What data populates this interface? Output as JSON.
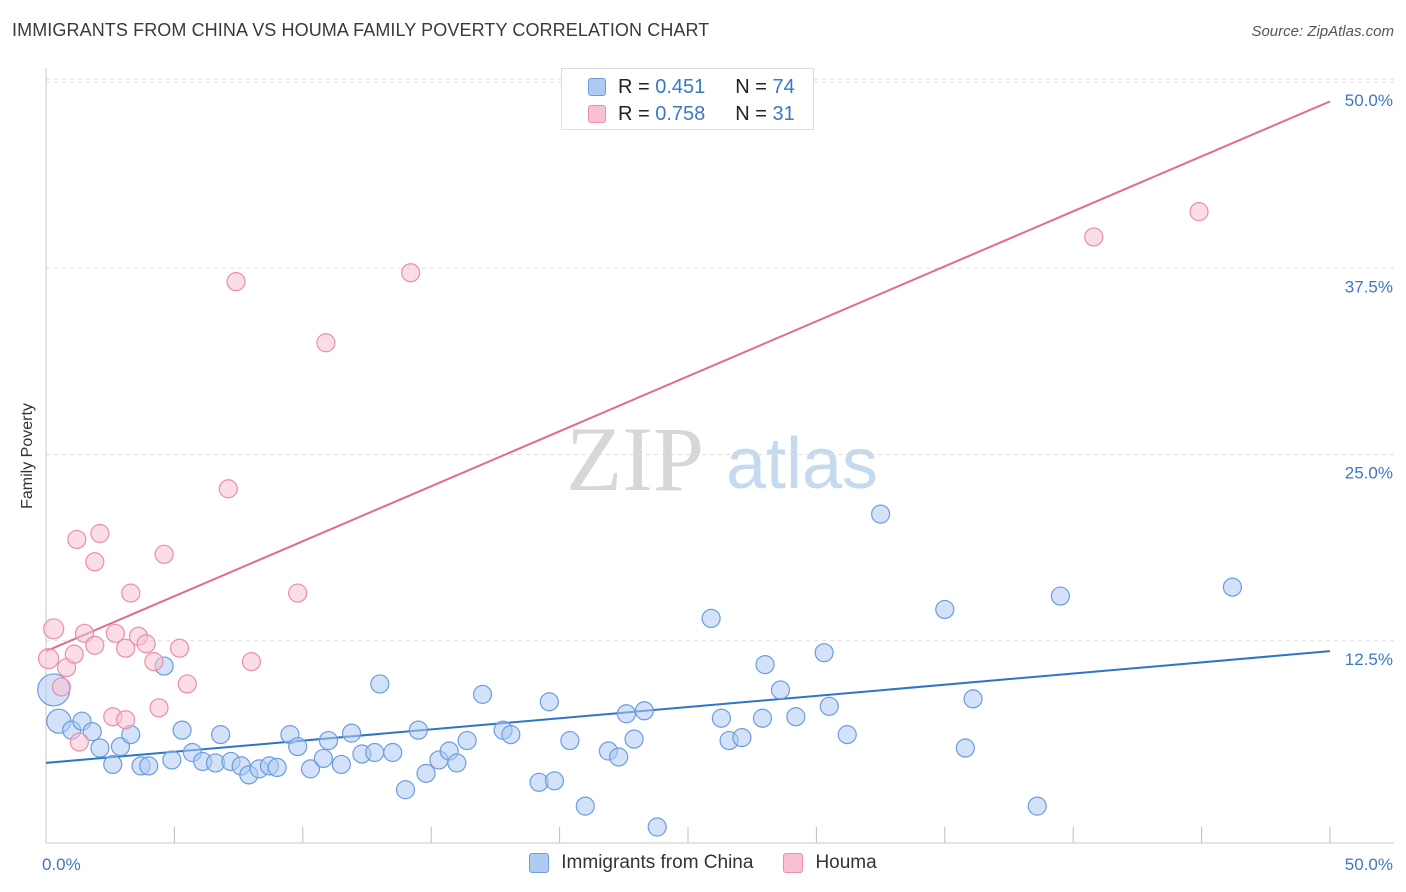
{
  "title": "IMMIGRANTS FROM CHINA VS HOUMA FAMILY POVERTY CORRELATION CHART",
  "source": "Source: ZipAtlas.com",
  "watermark": {
    "zip": "ZIP",
    "atlas": "atlas"
  },
  "colors": {
    "blue_fill": "#aecbf2",
    "blue_stroke": "#6a9de0",
    "blue_line": "#2f74c9",
    "pink_fill": "#f7c1d0",
    "pink_stroke": "#ea8eaa",
    "pink_line": "#e06b92",
    "tick_label": "#3b78c4",
    "grid": "#dddddd"
  },
  "legend_top": [
    {
      "r_label": "R =",
      "r_value": "0.451",
      "n_label": "N =",
      "n_value": "74"
    },
    {
      "r_label": "R =",
      "r_value": "0.758",
      "n_label": "N =",
      "n_value": "31"
    }
  ],
  "chart_data": {
    "type": "scatter",
    "xlabel": "",
    "ylabel": "Family Poverty",
    "xlim": [
      0,
      50
    ],
    "ylim": [
      0,
      50
    ],
    "x_tick_labels": [
      {
        "value": 0,
        "label": "0.0%"
      },
      {
        "value": 50,
        "label": "50.0%"
      }
    ],
    "y_tick_labels": [
      {
        "value": 12.5,
        "label": "12.5%"
      },
      {
        "value": 25,
        "label": "25.0%"
      },
      {
        "value": 37.5,
        "label": "37.5%"
      },
      {
        "value": 50,
        "label": "50.0%"
      }
    ],
    "x_minor_ticks": [
      5,
      10,
      15,
      20,
      25,
      30,
      35,
      40,
      45,
      50
    ],
    "grid": true,
    "legend_position": "bottom",
    "series": [
      {
        "name": "Immigrants from China",
        "color": "#aecbf2",
        "trend": {
          "x": [
            0,
            50
          ],
          "y": [
            4.3,
            11.8
          ]
        },
        "points": [
          [
            0.3,
            9.2,
            16
          ],
          [
            0.5,
            7.1,
            12
          ],
          [
            1.0,
            6.5,
            9
          ],
          [
            1.4,
            7.1,
            9
          ],
          [
            1.8,
            6.4,
            9
          ],
          [
            2.1,
            5.3,
            9
          ],
          [
            2.6,
            4.2,
            9
          ],
          [
            2.9,
            5.4,
            9
          ],
          [
            3.3,
            6.2,
            9
          ],
          [
            3.7,
            4.1,
            9
          ],
          [
            4.0,
            4.1,
            9
          ],
          [
            4.6,
            10.8,
            9
          ],
          [
            4.9,
            4.5,
            9
          ],
          [
            5.3,
            6.5,
            9
          ],
          [
            5.7,
            5.0,
            9
          ],
          [
            6.1,
            4.4,
            9
          ],
          [
            6.6,
            4.3,
            9
          ],
          [
            6.8,
            6.2,
            9
          ],
          [
            7.2,
            4.4,
            9
          ],
          [
            7.6,
            4.1,
            9
          ],
          [
            7.9,
            3.5,
            9
          ],
          [
            8.3,
            3.9,
            9
          ],
          [
            8.7,
            4.1,
            9
          ],
          [
            9.0,
            4.0,
            9
          ],
          [
            9.5,
            6.2,
            9
          ],
          [
            9.8,
            5.4,
            9
          ],
          [
            10.3,
            3.9,
            9
          ],
          [
            10.8,
            4.6,
            9
          ],
          [
            11.0,
            5.8,
            9
          ],
          [
            11.5,
            4.2,
            9
          ],
          [
            11.9,
            6.3,
            9
          ],
          [
            12.3,
            4.9,
            9
          ],
          [
            12.8,
            5.0,
            9
          ],
          [
            13.0,
            9.6,
            9
          ],
          [
            13.5,
            5.0,
            9
          ],
          [
            14.0,
            2.5,
            9
          ],
          [
            14.5,
            6.5,
            9
          ],
          [
            14.8,
            3.6,
            9
          ],
          [
            15.3,
            4.5,
            9
          ],
          [
            15.7,
            5.1,
            9
          ],
          [
            16.0,
            4.3,
            9
          ],
          [
            16.4,
            5.8,
            9
          ],
          [
            17.0,
            8.9,
            9
          ],
          [
            17.8,
            6.5,
            9
          ],
          [
            18.1,
            6.2,
            9
          ],
          [
            19.2,
            3.0,
            9
          ],
          [
            19.6,
            8.4,
            9
          ],
          [
            19.8,
            3.1,
            9
          ],
          [
            20.4,
            5.8,
            9
          ],
          [
            21.0,
            1.4,
            9
          ],
          [
            21.9,
            5.1,
            9
          ],
          [
            22.3,
            4.7,
            9
          ],
          [
            22.6,
            7.6,
            9
          ],
          [
            22.9,
            5.9,
            9
          ],
          [
            23.3,
            7.8,
            9
          ],
          [
            23.8,
            0.0,
            9
          ],
          [
            25.9,
            14.0,
            9
          ],
          [
            26.3,
            7.3,
            9
          ],
          [
            26.6,
            5.8,
            9
          ],
          [
            27.1,
            6.0,
            9
          ],
          [
            27.9,
            7.3,
            9
          ],
          [
            28.0,
            10.9,
            9
          ],
          [
            28.6,
            9.2,
            9
          ],
          [
            29.2,
            7.4,
            9
          ],
          [
            30.3,
            11.7,
            9
          ],
          [
            30.5,
            8.1,
            9
          ],
          [
            31.2,
            6.2,
            9
          ],
          [
            32.5,
            21.0,
            9
          ],
          [
            35.0,
            14.6,
            9
          ],
          [
            35.8,
            5.3,
            9
          ],
          [
            36.1,
            8.6,
            9
          ],
          [
            38.6,
            1.4,
            9
          ],
          [
            39.5,
            15.5,
            9
          ],
          [
            46.2,
            16.1,
            9
          ]
        ]
      },
      {
        "name": "Houma",
        "color": "#f7c1d0",
        "trend": {
          "x": [
            0,
            50
          ],
          "y": [
            11.8,
            48.7
          ]
        },
        "points": [
          [
            0.1,
            11.3,
            10
          ],
          [
            0.3,
            13.3,
            10
          ],
          [
            0.6,
            9.4,
            9
          ],
          [
            0.8,
            10.7,
            9
          ],
          [
            1.1,
            11.6,
            9
          ],
          [
            1.2,
            19.3,
            9
          ],
          [
            1.3,
            5.7,
            9
          ],
          [
            1.5,
            13.0,
            9
          ],
          [
            1.9,
            12.2,
            9
          ],
          [
            1.9,
            17.8,
            9
          ],
          [
            2.1,
            19.7,
            9
          ],
          [
            2.6,
            7.4,
            9
          ],
          [
            2.7,
            13.0,
            9
          ],
          [
            3.1,
            7.2,
            9
          ],
          [
            3.1,
            12.0,
            9
          ],
          [
            3.3,
            15.7,
            9
          ],
          [
            3.6,
            12.8,
            9
          ],
          [
            3.9,
            12.3,
            9
          ],
          [
            4.2,
            11.1,
            9
          ],
          [
            4.4,
            8.0,
            9
          ],
          [
            4.6,
            18.3,
            9
          ],
          [
            5.2,
            12.0,
            9
          ],
          [
            5.5,
            9.6,
            9
          ],
          [
            7.1,
            22.7,
            9
          ],
          [
            7.4,
            36.6,
            9
          ],
          [
            8.0,
            11.1,
            9
          ],
          [
            9.8,
            15.7,
            9
          ],
          [
            10.9,
            32.5,
            9
          ],
          [
            14.2,
            37.2,
            9
          ],
          [
            40.8,
            39.6,
            9
          ],
          [
            44.9,
            41.3,
            9
          ]
        ]
      }
    ]
  }
}
